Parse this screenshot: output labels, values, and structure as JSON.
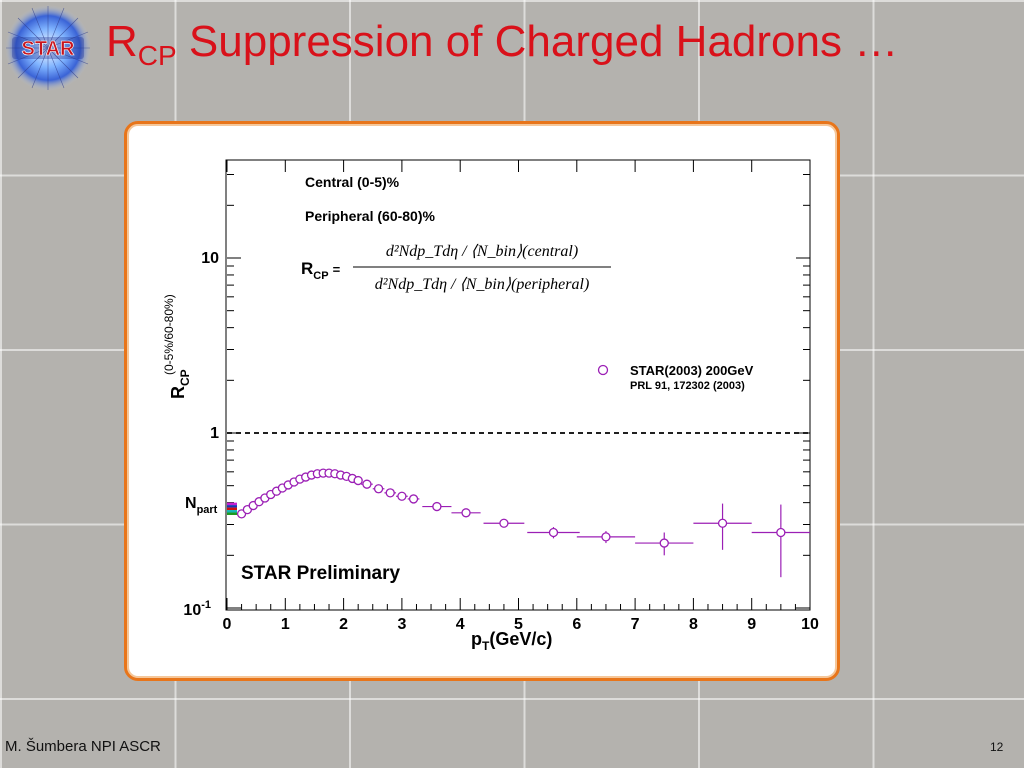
{
  "slide": {
    "title_main": "R",
    "title_sub": "CP",
    "title_rest": " Suppression of Charged Hadrons …",
    "logo_text": "STAR",
    "footer": "M. Šumbera NPI ASCR",
    "page_number": "12",
    "title_color": "#d9111a",
    "frame_border_color": "#e8751a"
  },
  "chart_data": {
    "type": "scatter",
    "y_scale": "log",
    "xlim": [
      0,
      10
    ],
    "ylim": [
      0.1,
      40
    ],
    "x_ticks": [
      "0",
      "1",
      "2",
      "3",
      "4",
      "5",
      "6",
      "7",
      "8",
      "9",
      "10"
    ],
    "y_tick_labels": {
      "top": "10",
      "mid": "1",
      "bottom_base": "10",
      "bottom_exp": "-1"
    },
    "xlabel_main": "p",
    "xlabel_sub": "T",
    "xlabel_rest": "(GeV/c)",
    "ylabel_main": "R",
    "ylabel_sub": "CP",
    "ylabel_sup": "(0-5%/60-80%)",
    "legend_central": "Central (0-5)%",
    "legend_peripheral": "Peripheral (60-80)%",
    "formula_lhs_main": "R",
    "formula_lhs_sub": "CP",
    "formula_eq": "=",
    "formula_num": "d²Ndp_Tdη / ⟨N_bin⟩(central)",
    "formula_den": "d²Ndp_Tdη / ⟨N_bin⟩(peripheral)",
    "series_label": "STAR(2003) 200GeV",
    "series_ref": "PRL 91, 172302 (2003)",
    "preliminary_label": "STAR Preliminary",
    "npart_main": "N",
    "npart_sub": "part",
    "reference_line_y": 1.0,
    "marker_color": "#9b1fb5",
    "points": [
      {
        "x": 0.25,
        "y": 0.345,
        "xerr": 0.05,
        "yerr": 0.01
      },
      {
        "x": 0.35,
        "y": 0.365,
        "xerr": 0.05,
        "yerr": 0.01
      },
      {
        "x": 0.45,
        "y": 0.385,
        "xerr": 0.05,
        "yerr": 0.01
      },
      {
        "x": 0.55,
        "y": 0.405,
        "xerr": 0.05,
        "yerr": 0.01
      },
      {
        "x": 0.65,
        "y": 0.425,
        "xerr": 0.05,
        "yerr": 0.01
      },
      {
        "x": 0.75,
        "y": 0.445,
        "xerr": 0.05,
        "yerr": 0.01
      },
      {
        "x": 0.85,
        "y": 0.465,
        "xerr": 0.05,
        "yerr": 0.01
      },
      {
        "x": 0.95,
        "y": 0.485,
        "xerr": 0.05,
        "yerr": 0.01
      },
      {
        "x": 1.05,
        "y": 0.505,
        "xerr": 0.05,
        "yerr": 0.01
      },
      {
        "x": 1.15,
        "y": 0.525,
        "xerr": 0.05,
        "yerr": 0.01
      },
      {
        "x": 1.25,
        "y": 0.545,
        "xerr": 0.05,
        "yerr": 0.01
      },
      {
        "x": 1.35,
        "y": 0.56,
        "xerr": 0.05,
        "yerr": 0.01
      },
      {
        "x": 1.45,
        "y": 0.575,
        "xerr": 0.05,
        "yerr": 0.01
      },
      {
        "x": 1.55,
        "y": 0.585,
        "xerr": 0.05,
        "yerr": 0.01
      },
      {
        "x": 1.65,
        "y": 0.59,
        "xerr": 0.05,
        "yerr": 0.01
      },
      {
        "x": 1.75,
        "y": 0.59,
        "xerr": 0.05,
        "yerr": 0.01
      },
      {
        "x": 1.85,
        "y": 0.585,
        "xerr": 0.05,
        "yerr": 0.01
      },
      {
        "x": 1.95,
        "y": 0.575,
        "xerr": 0.05,
        "yerr": 0.01
      },
      {
        "x": 2.05,
        "y": 0.565,
        "xerr": 0.05,
        "yerr": 0.01
      },
      {
        "x": 2.15,
        "y": 0.55,
        "xerr": 0.05,
        "yerr": 0.01
      },
      {
        "x": 2.25,
        "y": 0.535,
        "xerr": 0.05,
        "yerr": 0.01
      },
      {
        "x": 2.4,
        "y": 0.51,
        "xerr": 0.1,
        "yerr": 0.01
      },
      {
        "x": 2.6,
        "y": 0.48,
        "xerr": 0.1,
        "yerr": 0.01
      },
      {
        "x": 2.8,
        "y": 0.455,
        "xerr": 0.1,
        "yerr": 0.01
      },
      {
        "x": 3.0,
        "y": 0.435,
        "xerr": 0.1,
        "yerr": 0.01
      },
      {
        "x": 3.2,
        "y": 0.42,
        "xerr": 0.1,
        "yerr": 0.01
      },
      {
        "x": 3.6,
        "y": 0.38,
        "xerr": 0.25,
        "yerr": 0.01
      },
      {
        "x": 4.1,
        "y": 0.35,
        "xerr": 0.25,
        "yerr": 0.012
      },
      {
        "x": 4.75,
        "y": 0.305,
        "xerr": 0.35,
        "yerr": 0.015
      },
      {
        "x": 5.6,
        "y": 0.27,
        "xerr": 0.45,
        "yerr": 0.02
      },
      {
        "x": 6.5,
        "y": 0.255,
        "xerr": 0.5,
        "yerr": 0.02
      },
      {
        "x": 7.5,
        "y": 0.235,
        "xerr": 0.5,
        "yerr": 0.035
      },
      {
        "x": 8.5,
        "y": 0.305,
        "xerr": 0.5,
        "yerr": 0.09
      },
      {
        "x": 9.5,
        "y": 0.27,
        "xerr": 0.5,
        "yerr": 0.12
      }
    ],
    "npart_band_colors": [
      "#c61fd1",
      "#1a34b3",
      "#d01010",
      "#13b5b5",
      "#1e9a1e"
    ]
  }
}
